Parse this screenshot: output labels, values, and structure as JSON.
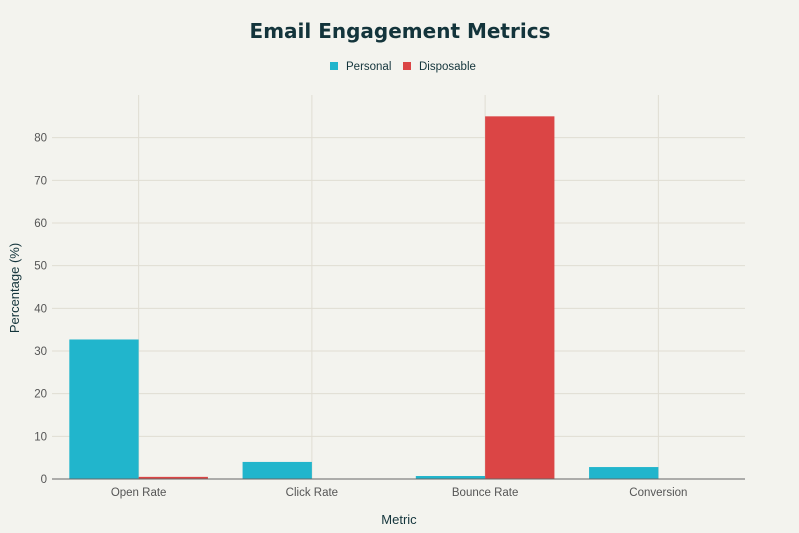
{
  "chart_data": {
    "type": "bar",
    "title": "Email Engagement Metrics",
    "xlabel": "Metric",
    "ylabel": "Percentage (%)",
    "categories": [
      "Open Rate",
      "Click Rate",
      "Bounce Rate",
      "Conversion"
    ],
    "series": [
      {
        "name": "Personal",
        "color": "#21b5cc",
        "values": [
          32.7,
          4.0,
          0.7,
          2.8
        ]
      },
      {
        "name": "Disposable",
        "color": "#db4545",
        "values": [
          0.5,
          0.1,
          85.0,
          0.1
        ]
      }
    ],
    "ylim": [
      0,
      90
    ],
    "yticks": [
      0,
      10,
      20,
      30,
      40,
      50,
      60,
      70,
      80
    ],
    "grid": true,
    "legend_placement": "top-center"
  }
}
